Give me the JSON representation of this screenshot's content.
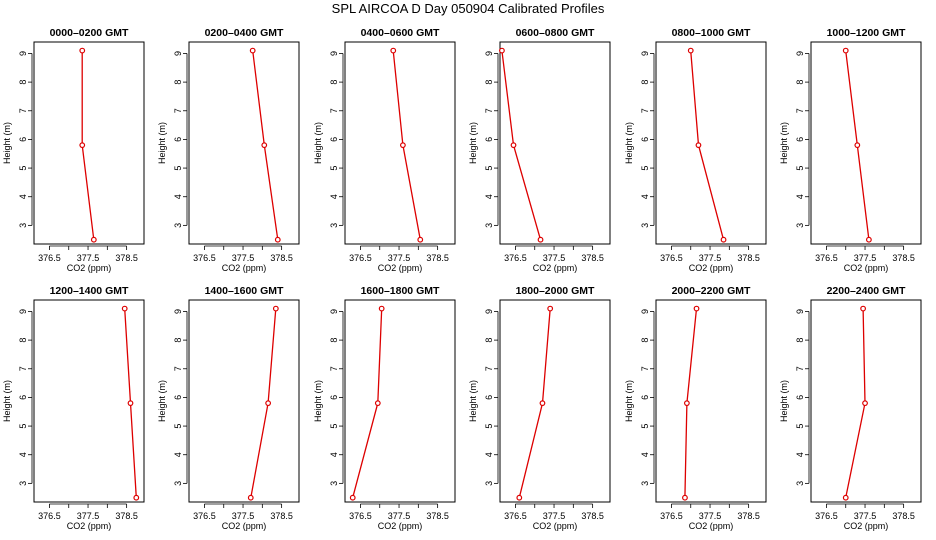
{
  "title": "SPL AIRCOA D  Day 050904  Calibrated Profiles",
  "colors": {
    "series": "#dd0000",
    "axis": "#000000"
  },
  "chart_data": [
    {
      "type": "line",
      "title": "0000–0200 GMT",
      "xlabel": "CO2 (ppm)",
      "ylabel": "Height (m)",
      "xlim": [
        376.1,
        378.95
      ],
      "ylim": [
        2.35,
        9.4
      ],
      "xticks": [
        "376.5",
        "377.0",
        "377.5",
        "378.0",
        "378.5"
      ],
      "xtick_values": [
        376.5,
        377.0,
        377.5,
        378.0,
        378.5
      ],
      "yticks": [
        "3",
        "4",
        "5",
        "6",
        "7",
        "8",
        "9"
      ],
      "ytick_values": [
        3,
        4,
        5,
        6,
        7,
        8,
        9
      ],
      "x": [
        377.65,
        377.35,
        377.35
      ],
      "y": [
        2.5,
        5.8,
        9.1
      ]
    },
    {
      "type": "line",
      "title": "0200–0400 GMT",
      "xlabel": "CO2 (ppm)",
      "ylabel": "Height (m)",
      "xlim": [
        376.1,
        378.95
      ],
      "ylim": [
        2.35,
        9.4
      ],
      "xticks": [
        "376.5",
        "377.0",
        "377.5",
        "378.0",
        "378.5"
      ],
      "xtick_values": [
        376.5,
        377.0,
        377.5,
        378.0,
        378.5
      ],
      "yticks": [
        "3",
        "4",
        "5",
        "6",
        "7",
        "8",
        "9"
      ],
      "ytick_values": [
        3,
        4,
        5,
        6,
        7,
        8,
        9
      ],
      "x": [
        378.4,
        378.05,
        377.75
      ],
      "y": [
        2.5,
        5.8,
        9.1
      ]
    },
    {
      "type": "line",
      "title": "0400–0600 GMT",
      "xlabel": "CO2 (ppm)",
      "ylabel": "Height (m)",
      "xlim": [
        376.1,
        378.95
      ],
      "ylim": [
        2.35,
        9.4
      ],
      "xticks": [
        "376.5",
        "377.0",
        "377.5",
        "378.0",
        "378.5"
      ],
      "xtick_values": [
        376.5,
        377.0,
        377.5,
        378.0,
        378.5
      ],
      "yticks": [
        "3",
        "4",
        "5",
        "6",
        "7",
        "8",
        "9"
      ],
      "ytick_values": [
        3,
        4,
        5,
        6,
        7,
        8,
        9
      ],
      "x": [
        378.05,
        377.6,
        377.35
      ],
      "y": [
        2.5,
        5.8,
        9.1
      ]
    },
    {
      "type": "line",
      "title": "0600–0800 GMT",
      "xlabel": "CO2 (ppm)",
      "ylabel": "Height (m)",
      "xlim": [
        376.1,
        378.95
      ],
      "ylim": [
        2.35,
        9.4
      ],
      "xticks": [
        "376.5",
        "377.0",
        "377.5",
        "378.0",
        "378.5"
      ],
      "xtick_values": [
        376.5,
        377.0,
        377.5,
        378.0,
        378.5
      ],
      "yticks": [
        "3",
        "4",
        "5",
        "6",
        "7",
        "8",
        "9"
      ],
      "ytick_values": [
        3,
        4,
        5,
        6,
        7,
        8,
        9
      ],
      "x": [
        377.15,
        376.45,
        376.15
      ],
      "y": [
        2.5,
        5.8,
        9.1
      ]
    },
    {
      "type": "line",
      "title": "0800–1000 GMT",
      "xlabel": "CO2 (ppm)",
      "ylabel": "Height (m)",
      "xlim": [
        376.1,
        378.95
      ],
      "ylim": [
        2.35,
        9.4
      ],
      "xticks": [
        "376.5",
        "377.0",
        "377.5",
        "378.0",
        "378.5"
      ],
      "xtick_values": [
        376.5,
        377.0,
        377.5,
        378.0,
        378.5
      ],
      "yticks": [
        "3",
        "4",
        "5",
        "6",
        "7",
        "8",
        "9"
      ],
      "ytick_values": [
        3,
        4,
        5,
        6,
        7,
        8,
        9
      ],
      "x": [
        377.85,
        377.2,
        377.0
      ],
      "y": [
        2.5,
        5.8,
        9.1
      ]
    },
    {
      "type": "line",
      "title": "1000–1200 GMT",
      "xlabel": "CO2 (ppm)",
      "ylabel": "Height (m)",
      "xlim": [
        376.1,
        378.95
      ],
      "ylim": [
        2.35,
        9.4
      ],
      "xticks": [
        "376.5",
        "377.0",
        "377.5",
        "378.0",
        "378.5"
      ],
      "xtick_values": [
        376.5,
        377.0,
        377.5,
        378.0,
        378.5
      ],
      "yticks": [
        "3",
        "4",
        "5",
        "6",
        "7",
        "8",
        "9"
      ],
      "ytick_values": [
        3,
        4,
        5,
        6,
        7,
        8,
        9
      ],
      "x": [
        377.6,
        377.3,
        377.0
      ],
      "y": [
        2.5,
        5.8,
        9.1
      ]
    },
    {
      "type": "line",
      "title": "1200–1400 GMT",
      "xlabel": "CO2 (ppm)",
      "ylabel": "Height (m)",
      "xlim": [
        376.1,
        378.95
      ],
      "ylim": [
        2.35,
        9.4
      ],
      "xticks": [
        "376.5",
        "377.0",
        "377.5",
        "378.0",
        "378.5"
      ],
      "xtick_values": [
        376.5,
        377.0,
        377.5,
        378.0,
        378.5
      ],
      "yticks": [
        "3",
        "4",
        "5",
        "6",
        "7",
        "8",
        "9"
      ],
      "ytick_values": [
        3,
        4,
        5,
        6,
        7,
        8,
        9
      ],
      "x": [
        378.75,
        378.6,
        378.45
      ],
      "y": [
        2.5,
        5.8,
        9.1
      ]
    },
    {
      "type": "line",
      "title": "1400–1600 GMT",
      "xlabel": "CO2 (ppm)",
      "ylabel": "Height (m)",
      "xlim": [
        376.1,
        378.95
      ],
      "ylim": [
        2.35,
        9.4
      ],
      "xticks": [
        "376.5",
        "377.0",
        "377.5",
        "378.0",
        "378.5"
      ],
      "xtick_values": [
        376.5,
        377.0,
        377.5,
        378.0,
        378.5
      ],
      "yticks": [
        "3",
        "4",
        "5",
        "6",
        "7",
        "8",
        "9"
      ],
      "ytick_values": [
        3,
        4,
        5,
        6,
        7,
        8,
        9
      ],
      "x": [
        377.7,
        378.15,
        378.35
      ],
      "y": [
        2.5,
        5.8,
        9.1
      ]
    },
    {
      "type": "line",
      "title": "1600–1800 GMT",
      "xlabel": "CO2 (ppm)",
      "ylabel": "Height (m)",
      "xlim": [
        376.1,
        378.95
      ],
      "ylim": [
        2.35,
        9.4
      ],
      "xticks": [
        "376.5",
        "377.0",
        "377.5",
        "378.0",
        "378.5"
      ],
      "xtick_values": [
        376.5,
        377.0,
        377.5,
        378.0,
        378.5
      ],
      "yticks": [
        "3",
        "4",
        "5",
        "6",
        "7",
        "8",
        "9"
      ],
      "ytick_values": [
        3,
        4,
        5,
        6,
        7,
        8,
        9
      ],
      "x": [
        376.3,
        376.95,
        377.05
      ],
      "y": [
        2.5,
        5.8,
        9.1
      ]
    },
    {
      "type": "line",
      "title": "1800–2000 GMT",
      "xlabel": "CO2 (ppm)",
      "ylabel": "Height (m)",
      "xlim": [
        376.1,
        378.95
      ],
      "ylim": [
        2.35,
        9.4
      ],
      "xticks": [
        "376.5",
        "377.0",
        "377.5",
        "378.0",
        "378.5"
      ],
      "xtick_values": [
        376.5,
        377.0,
        377.5,
        378.0,
        378.5
      ],
      "yticks": [
        "3",
        "4",
        "5",
        "6",
        "7",
        "8",
        "9"
      ],
      "ytick_values": [
        3,
        4,
        5,
        6,
        7,
        8,
        9
      ],
      "x": [
        376.6,
        377.2,
        377.4
      ],
      "y": [
        2.5,
        5.8,
        9.1
      ]
    },
    {
      "type": "line",
      "title": "2000–2200 GMT",
      "xlabel": "CO2 (ppm)",
      "ylabel": "Height (m)",
      "xlim": [
        376.1,
        378.95
      ],
      "ylim": [
        2.35,
        9.4
      ],
      "xticks": [
        "376.5",
        "377.0",
        "377.5",
        "378.0",
        "378.5"
      ],
      "xtick_values": [
        376.5,
        377.0,
        377.5,
        378.0,
        378.5
      ],
      "yticks": [
        "3",
        "4",
        "5",
        "6",
        "7",
        "8",
        "9"
      ],
      "ytick_values": [
        3,
        4,
        5,
        6,
        7,
        8,
        9
      ],
      "x": [
        376.85,
        376.9,
        377.15
      ],
      "y": [
        2.5,
        5.8,
        9.1
      ]
    },
    {
      "type": "line",
      "title": "2200–2400 GMT",
      "xlabel": "CO2 (ppm)",
      "ylabel": "Height (m)",
      "xlim": [
        376.1,
        378.95
      ],
      "ylim": [
        2.35,
        9.4
      ],
      "xticks": [
        "376.5",
        "377.0",
        "377.5",
        "378.0",
        "378.5"
      ],
      "xtick_values": [
        376.5,
        377.0,
        377.5,
        378.0,
        378.5
      ],
      "yticks": [
        "3",
        "4",
        "5",
        "6",
        "7",
        "8",
        "9"
      ],
      "ytick_values": [
        3,
        4,
        5,
        6,
        7,
        8,
        9
      ],
      "x": [
        377.0,
        377.5,
        377.45
      ],
      "y": [
        2.5,
        5.8,
        9.1
      ]
    }
  ]
}
